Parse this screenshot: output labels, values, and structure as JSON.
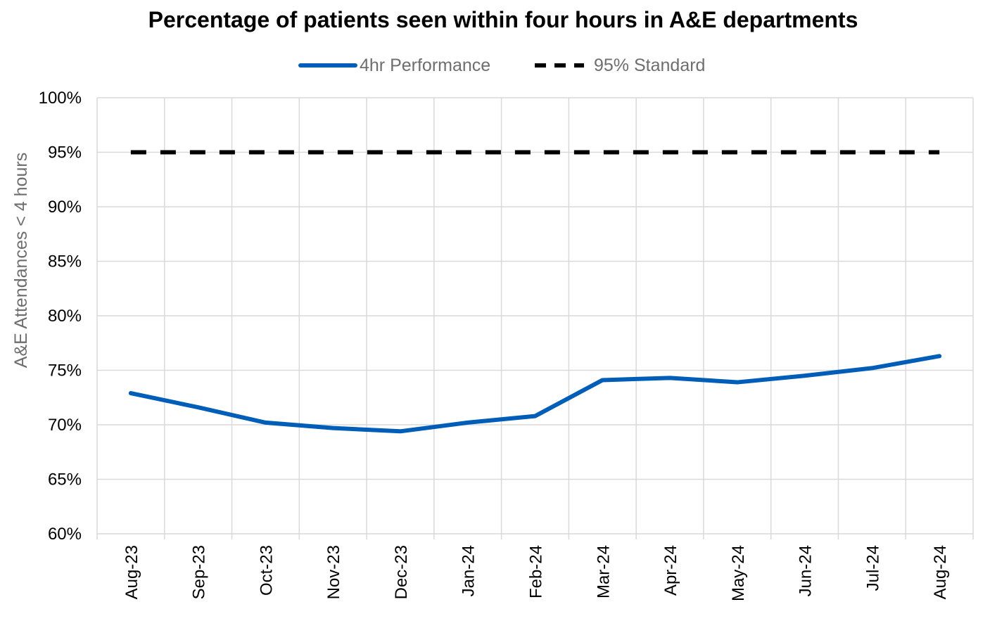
{
  "chart_data": {
    "type": "line",
    "title": "Percentage of patients seen within four hours in A&E departments",
    "ylabel": "A&E Attendances < 4 hours",
    "xlabel": "",
    "categories": [
      "Aug-23",
      "Sep-23",
      "Oct-23",
      "Nov-23",
      "Dec-23",
      "Jan-24",
      "Feb-24",
      "Mar-24",
      "Apr-24",
      "May-24",
      "Jun-24",
      "Jul-24",
      "Aug-24"
    ],
    "ylim": [
      0.6,
      1.0
    ],
    "yticks": [
      0.6,
      0.65,
      0.7,
      0.75,
      0.8,
      0.85,
      0.9,
      0.95,
      1.0
    ],
    "ytick_labels": [
      "60%",
      "65%",
      "70%",
      "75%",
      "80%",
      "85%",
      "90%",
      "95%",
      "100%"
    ],
    "grid": true,
    "legend_position": "top",
    "series": [
      {
        "name": "4hr Performance",
        "color": "#005eb8",
        "dash": "solid",
        "values": [
          0.729,
          0.716,
          0.702,
          0.697,
          0.694,
          0.702,
          0.708,
          0.741,
          0.743,
          0.739,
          0.745,
          0.752,
          0.763
        ]
      },
      {
        "name": "95% Standard",
        "color": "#000000",
        "dash": "dashed",
        "values": [
          0.95,
          0.95,
          0.95,
          0.95,
          0.95,
          0.95,
          0.95,
          0.95,
          0.95,
          0.95,
          0.95,
          0.95,
          0.95
        ]
      }
    ]
  }
}
